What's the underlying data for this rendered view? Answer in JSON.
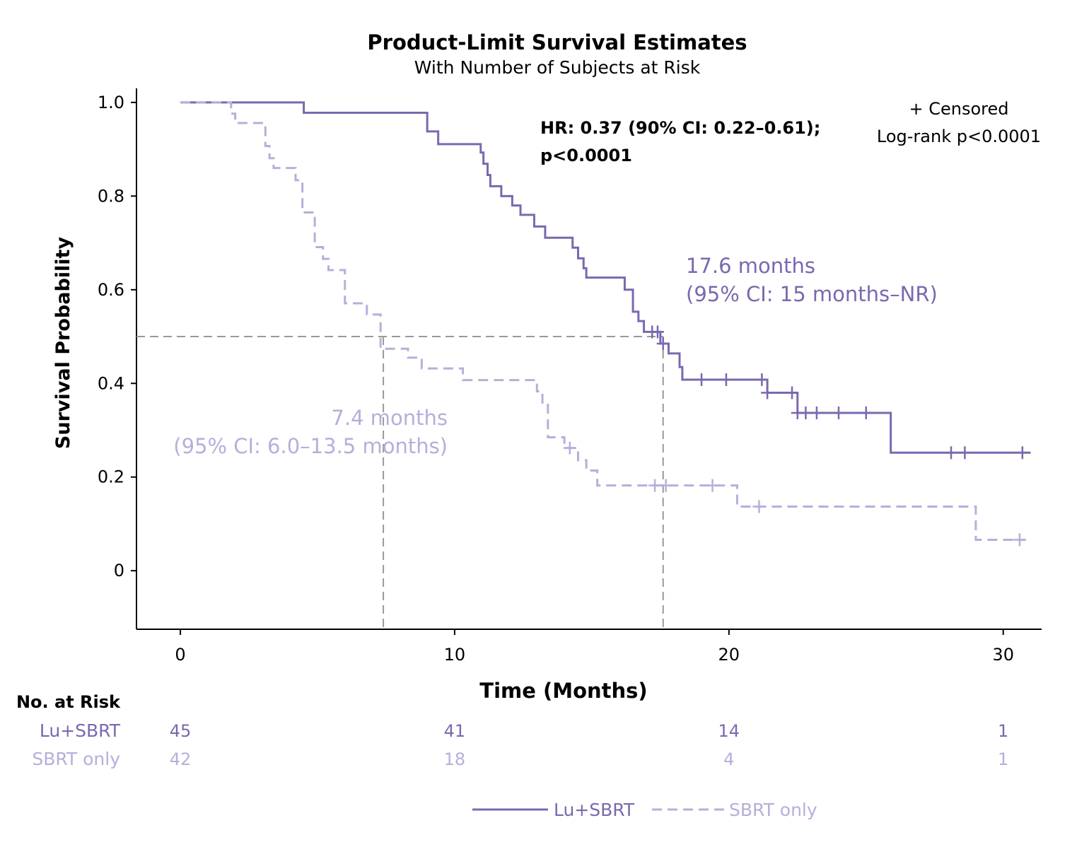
{
  "chart_data": {
    "type": "line",
    "title": "Product-Limit Survival Estimates",
    "subtitle": "With Number of Subjects at Risk",
    "xlabel": "Time (Months)",
    "ylabel": "Survival Probability",
    "xlim": [
      -1.6,
      31.4
    ],
    "ylim": [
      -0.125,
      1.03
    ],
    "xticks": [
      0,
      10,
      20,
      30
    ],
    "yticks": [
      0,
      0.2,
      0.4,
      0.6,
      0.8,
      1.0
    ],
    "ytick_labels": [
      "0",
      "0.2",
      "0.4",
      "0.6",
      "0.8",
      "1.0"
    ],
    "grid": false,
    "colors": {
      "lu_sbrt": "#7b68b0",
      "sbrt_only": "#b7aedb",
      "median_line": "#999999"
    },
    "series": [
      {
        "name": "Lu+SBRT",
        "style": "solid",
        "steps": [
          [
            0,
            1.0
          ],
          [
            4.5,
            0.978
          ],
          [
            9.0,
            0.938
          ],
          [
            9.4,
            0.911
          ],
          [
            10.95,
            0.893
          ],
          [
            11.05,
            0.869
          ],
          [
            11.2,
            0.845
          ],
          [
            11.3,
            0.821
          ],
          [
            11.7,
            0.8
          ],
          [
            12.1,
            0.78
          ],
          [
            12.4,
            0.76
          ],
          [
            12.9,
            0.735
          ],
          [
            13.3,
            0.711
          ],
          [
            14.3,
            0.69
          ],
          [
            14.5,
            0.667
          ],
          [
            14.7,
            0.646
          ],
          [
            14.8,
            0.626
          ],
          [
            16.2,
            0.6
          ],
          [
            16.5,
            0.553
          ],
          [
            16.7,
            0.533
          ],
          [
            16.9,
            0.51
          ],
          [
            17.5,
            0.485
          ],
          [
            17.8,
            0.464
          ],
          [
            18.2,
            0.435
          ],
          [
            18.3,
            0.408
          ],
          [
            21.4,
            0.38
          ],
          [
            22.5,
            0.337
          ],
          [
            25.9,
            0.252
          ]
        ],
        "end": 31.0,
        "censored": [
          17.2,
          17.4,
          17.6,
          19.0,
          19.9,
          21.2,
          21.4,
          22.3,
          22.5,
          22.8,
          23.2,
          24.0,
          25.0,
          28.1,
          28.6,
          30.7
        ]
      },
      {
        "name": "SBRT only",
        "style": "dashed",
        "steps": [
          [
            0,
            1.0
          ],
          [
            1.85,
            0.976
          ],
          [
            2.0,
            0.956
          ],
          [
            3.1,
            0.907
          ],
          [
            3.25,
            0.881
          ],
          [
            3.4,
            0.86
          ],
          [
            4.2,
            0.834
          ],
          [
            4.45,
            0.765
          ],
          [
            4.9,
            0.691
          ],
          [
            5.2,
            0.666
          ],
          [
            5.4,
            0.642
          ],
          [
            6.0,
            0.571
          ],
          [
            6.8,
            0.547
          ],
          [
            7.3,
            0.474
          ],
          [
            8.3,
            0.455
          ],
          [
            8.8,
            0.432
          ],
          [
            10.3,
            0.407
          ],
          [
            13.0,
            0.383
          ],
          [
            13.2,
            0.354
          ],
          [
            13.4,
            0.285
          ],
          [
            14.0,
            0.262
          ],
          [
            14.5,
            0.236
          ],
          [
            14.8,
            0.214
          ],
          [
            15.2,
            0.182
          ],
          [
            20.3,
            0.137
          ],
          [
            29.0,
            0.066
          ]
        ],
        "end": 30.8,
        "censored": [
          14.2,
          17.3,
          17.7,
          19.4,
          21.1,
          30.6
        ]
      }
    ],
    "medians": [
      {
        "series": "SBRT only",
        "value": 7.4,
        "label1": "7.4 months",
        "label2": "(95% CI: 6.0–13.5 months)"
      },
      {
        "series": "Lu+SBRT",
        "value": 17.6,
        "label1": "17.6 months",
        "label2": "(95% CI: 15 months–NR)"
      }
    ],
    "annotations": {
      "hr_line1": "HR: 0.37 (90% CI: 0.22–0.61);",
      "hr_line2": "p<0.0001",
      "censored_legend": "+ Censored",
      "logrank": "Log-rank p<0.0001"
    },
    "risk_table": {
      "title": "No. at Risk",
      "times": [
        0,
        10,
        20,
        30
      ],
      "rows": [
        {
          "label": "Lu+SBRT",
          "values": [
            "45",
            "41",
            "14",
            "1"
          ]
        },
        {
          "label": "SBRT only",
          "values": [
            "42",
            "18",
            "4",
            "1"
          ]
        }
      ]
    },
    "legend": {
      "placement": "bottom",
      "items": [
        "Lu+SBRT",
        "SBRT only"
      ]
    }
  }
}
